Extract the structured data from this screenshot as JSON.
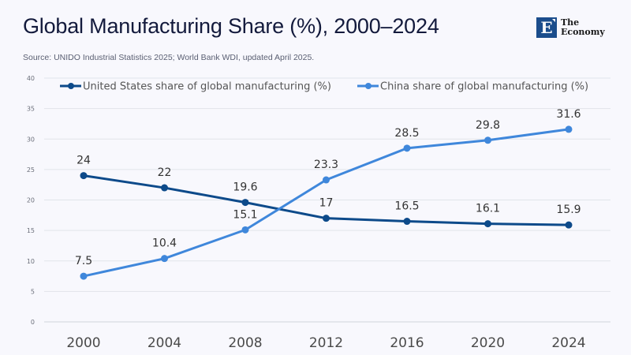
{
  "header": {
    "title": "Global Manufacturing Share (%), 2000–2024",
    "source": "Source:  UNIDO Industrial Statistics 2025; World Bank WDI, updated April 2025."
  },
  "logo": {
    "mark": "E",
    "line1": "The",
    "line2": "Economy"
  },
  "chart_data": {
    "type": "line",
    "title": "Global Manufacturing Share (%), 2000–2024",
    "xlabel": "",
    "ylabel": "",
    "x": [
      "2000",
      "2004",
      "2008",
      "2012",
      "2016",
      "2020",
      "2024"
    ],
    "ylim": [
      0,
      40
    ],
    "yticks": [
      "0",
      "5",
      "10",
      "15",
      "20",
      "25",
      "30",
      "35",
      "40"
    ],
    "grid": true,
    "legend_position": "top",
    "series": [
      {
        "name": "United States share of global manufacturing (%)",
        "color": "#0d4a8a",
        "values": [
          24,
          22,
          19.6,
          17,
          16.5,
          16.1,
          15.9
        ],
        "labels": [
          "24",
          "22",
          "19.6",
          "17",
          "16.5",
          "16.1",
          "15.9"
        ]
      },
      {
        "name": "China share of global manufacturing (%)",
        "color": "#3f87db",
        "values": [
          7.5,
          10.4,
          15.1,
          23.3,
          28.5,
          29.8,
          31.6
        ],
        "labels": [
          "7.5",
          "10.4",
          "15.1",
          "23.3",
          "28.5",
          "29.8",
          "31.6"
        ]
      }
    ]
  }
}
